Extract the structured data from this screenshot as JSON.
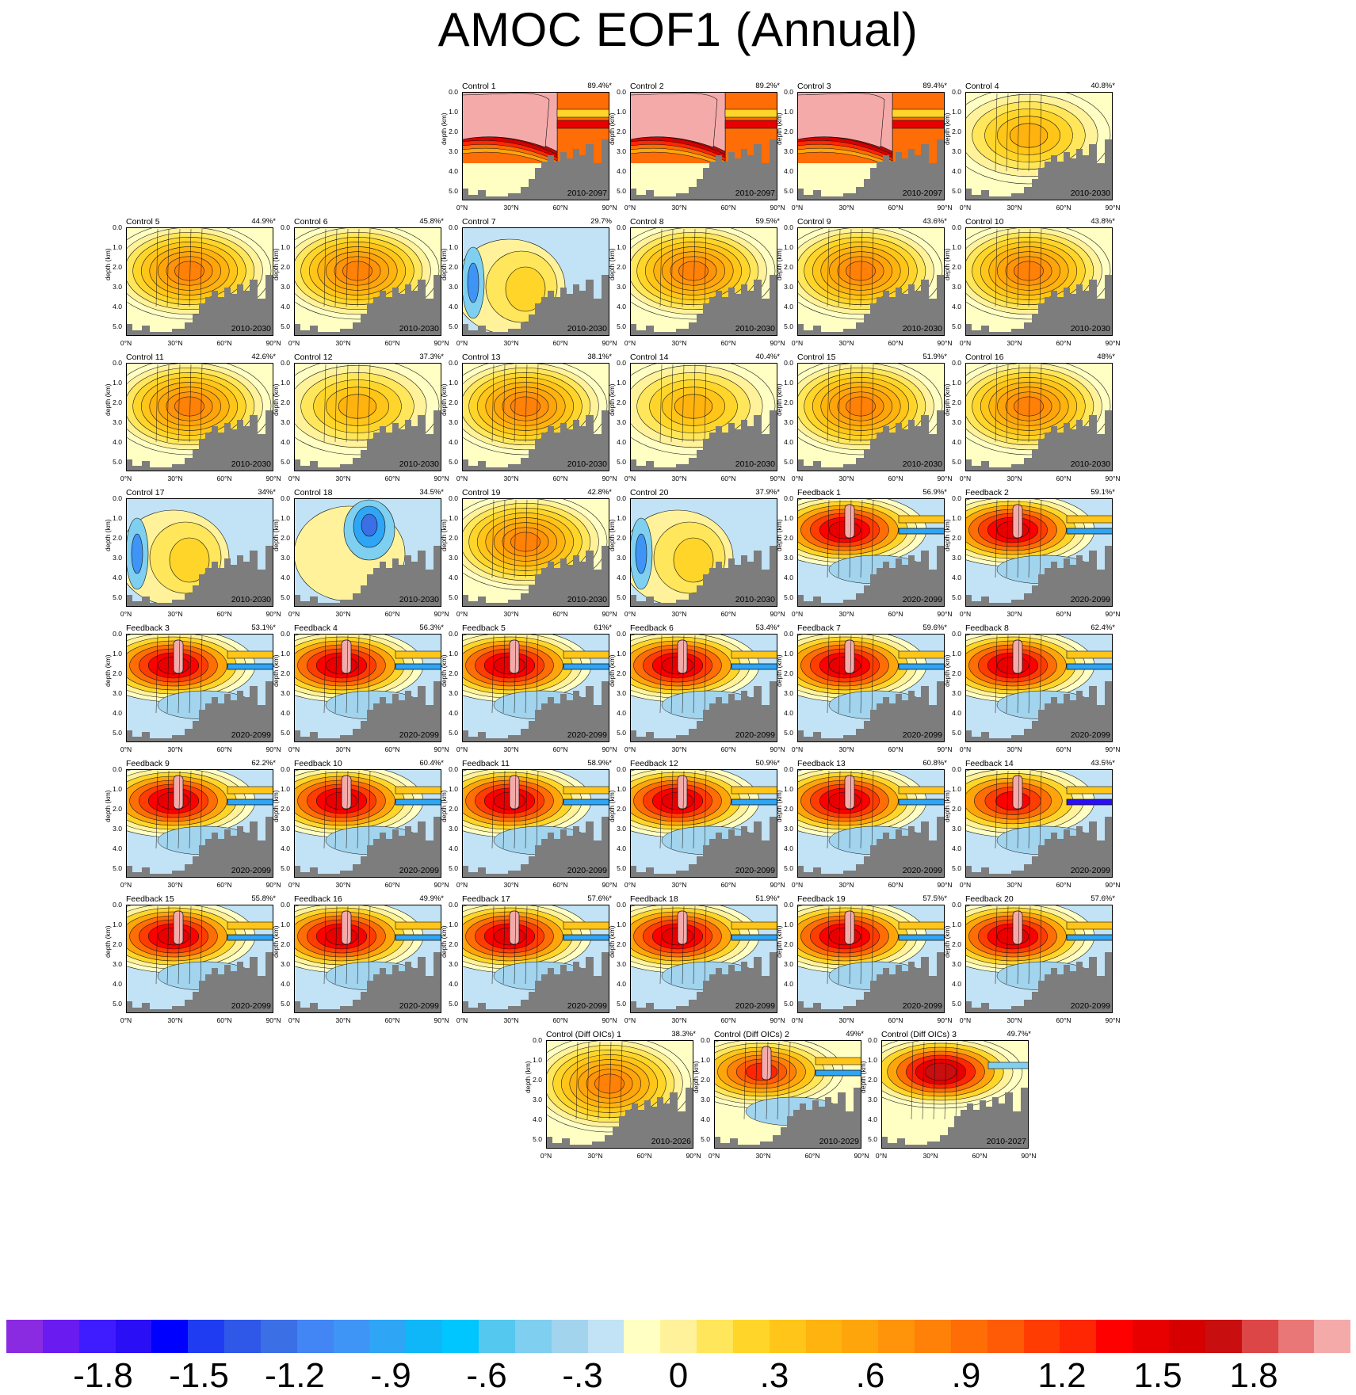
{
  "title": "AMOC EOF1 (Annual)",
  "axis": {
    "ylabel": "depth (km)",
    "yticks": [
      "0.0",
      "1.0",
      "2.0",
      "3.0",
      "4.0",
      "5.0"
    ],
    "xticks": [
      "0°N",
      "30°N",
      "60°N",
      "90°N"
    ]
  },
  "colorbar": {
    "colors": [
      "#8a2be2",
      "#6a1cf0",
      "#3f1cff",
      "#2a0ef5",
      "#0000ff",
      "#1f3cf2",
      "#2f58e8",
      "#3a6fe6",
      "#4285f4",
      "#3f95f5",
      "#2ea5f5",
      "#0fb7f8",
      "#00c6ff",
      "#55c8f0",
      "#7ecff0",
      "#a2d4ee",
      "#c2e2f5",
      "#ffffc4",
      "#fff29a",
      "#ffe65a",
      "#ffd52a",
      "#ffc518",
      "#ffb30f",
      "#ffa50c",
      "#ff930a",
      "#ff8108",
      "#ff6d06",
      "#ff5a05",
      "#ff3d03",
      "#ff2603",
      "#ff0000",
      "#e80000",
      "#d60000",
      "#c80e0e",
      "#dc4646",
      "#ea7777",
      "#f5aaaa"
    ],
    "labels": [
      "-1.8",
      "-1.5",
      "-1.2",
      "-.9",
      "-.6",
      "-.3",
      "0",
      ".3",
      ".6",
      ".9",
      "1.2",
      "1.5",
      "1.8"
    ]
  },
  "chart_data": [
    {
      "type": "contour",
      "panel": "Control 1",
      "variance": "89.4%*",
      "period": "2010-2097",
      "pattern": "red-pink"
    },
    {
      "type": "contour",
      "panel": "Control 2",
      "variance": "89.2%*",
      "period": "2010-2097",
      "pattern": "red-pink"
    },
    {
      "type": "contour",
      "panel": "Control 3",
      "variance": "89.4%*",
      "period": "2010-2097",
      "pattern": "red-pink"
    },
    {
      "type": "contour",
      "panel": "Control 4",
      "variance": "40.8%*",
      "period": "2010-2030",
      "pattern": "yellow"
    },
    {
      "type": "contour",
      "panel": "Control 5",
      "variance": "44.9%*",
      "period": "2010-2030",
      "pattern": "orange"
    },
    {
      "type": "contour",
      "panel": "Control 6",
      "variance": "45.8%*",
      "period": "2010-2030",
      "pattern": "orange"
    },
    {
      "type": "contour",
      "panel": "Control 7",
      "variance": "29.7%",
      "period": "2010-2030",
      "pattern": "blue-yellow"
    },
    {
      "type": "contour",
      "panel": "Control 8",
      "variance": "59.5%*",
      "period": "2010-2030",
      "pattern": "orange"
    },
    {
      "type": "contour",
      "panel": "Control 9",
      "variance": "43.6%*",
      "period": "2010-2030",
      "pattern": "orange"
    },
    {
      "type": "contour",
      "panel": "Control 10",
      "variance": "43.8%*",
      "period": "2010-2030",
      "pattern": "orange"
    },
    {
      "type": "contour",
      "panel": "Control 11",
      "variance": "42.6%*",
      "period": "2010-2030",
      "pattern": "orange"
    },
    {
      "type": "contour",
      "panel": "Control 12",
      "variance": "37.3%*",
      "period": "2010-2030",
      "pattern": "yellow"
    },
    {
      "type": "contour",
      "panel": "Control 13",
      "variance": "38.1%*",
      "period": "2010-2030",
      "pattern": "orange"
    },
    {
      "type": "contour",
      "panel": "Control 14",
      "variance": "40.4%*",
      "period": "2010-2030",
      "pattern": "yellow"
    },
    {
      "type": "contour",
      "panel": "Control 15",
      "variance": "51.9%*",
      "period": "2010-2030",
      "pattern": "orange"
    },
    {
      "type": "contour",
      "panel": "Control 16",
      "variance": "48%*",
      "period": "2010-2030",
      "pattern": "orange"
    },
    {
      "type": "contour",
      "panel": "Control 17",
      "variance": "34%*",
      "period": "2010-2030",
      "pattern": "blue-yellow"
    },
    {
      "type": "contour",
      "panel": "Control 18",
      "variance": "34.5%*",
      "period": "2010-2030",
      "pattern": "blue-core"
    },
    {
      "type": "contour",
      "panel": "Control 19",
      "variance": "42.8%*",
      "period": "2010-2030",
      "pattern": "orange"
    },
    {
      "type": "contour",
      "panel": "Control 20",
      "variance": "37.9%*",
      "period": "2010-2030",
      "pattern": "blue-yellow"
    },
    {
      "type": "contour",
      "panel": "Feedback 1",
      "variance": "56.9%*",
      "period": "2020-2099",
      "pattern": "red"
    },
    {
      "type": "contour",
      "panel": "Feedback 2",
      "variance": "59.1%*",
      "period": "2020-2099",
      "pattern": "red"
    },
    {
      "type": "contour",
      "panel": "Feedback 3",
      "variance": "53.1%*",
      "period": "2020-2099",
      "pattern": "red"
    },
    {
      "type": "contour",
      "panel": "Feedback 4",
      "variance": "56.3%*",
      "period": "2020-2099",
      "pattern": "red"
    },
    {
      "type": "contour",
      "panel": "Feedback 5",
      "variance": "61%*",
      "period": "2020-2099",
      "pattern": "red"
    },
    {
      "type": "contour",
      "panel": "Feedback 6",
      "variance": "53.4%*",
      "period": "2020-2099",
      "pattern": "red"
    },
    {
      "type": "contour",
      "panel": "Feedback 7",
      "variance": "59.6%*",
      "period": "2020-2099",
      "pattern": "red"
    },
    {
      "type": "contour",
      "panel": "Feedback 8",
      "variance": "62.4%*",
      "period": "2020-2099",
      "pattern": "red"
    },
    {
      "type": "contour",
      "panel": "Feedback 9",
      "variance": "62.2%*",
      "period": "2020-2099",
      "pattern": "red"
    },
    {
      "type": "contour",
      "panel": "Feedback 10",
      "variance": "60.4%*",
      "period": "2020-2099",
      "pattern": "red"
    },
    {
      "type": "contour",
      "panel": "Feedback 11",
      "variance": "58.9%*",
      "period": "2020-2099",
      "pattern": "red"
    },
    {
      "type": "contour",
      "panel": "Feedback 12",
      "variance": "50.9%*",
      "period": "2020-2099",
      "pattern": "red"
    },
    {
      "type": "contour",
      "panel": "Feedback 13",
      "variance": "60.8%*",
      "period": "2020-2099",
      "pattern": "red"
    },
    {
      "type": "contour",
      "panel": "Feedback 14",
      "variance": "43.5%*",
      "period": "2020-2099",
      "pattern": "red-blue"
    },
    {
      "type": "contour",
      "panel": "Feedback 15",
      "variance": "55.8%*",
      "period": "2020-2099",
      "pattern": "red"
    },
    {
      "type": "contour",
      "panel": "Feedback 16",
      "variance": "49.9%*",
      "period": "2020-2099",
      "pattern": "red"
    },
    {
      "type": "contour",
      "panel": "Feedback 17",
      "variance": "57.6%*",
      "period": "2020-2099",
      "pattern": "red"
    },
    {
      "type": "contour",
      "panel": "Feedback 18",
      "variance": "51.9%*",
      "period": "2020-2099",
      "pattern": "red"
    },
    {
      "type": "contour",
      "panel": "Feedback 19",
      "variance": "57.5%*",
      "period": "2020-2099",
      "pattern": "red"
    },
    {
      "type": "contour",
      "panel": "Feedback 20",
      "variance": "57.6%*",
      "period": "2020-2099",
      "pattern": "red"
    },
    {
      "type": "contour",
      "panel": "Control (Diff OICs) 1",
      "variance": "38.3%*",
      "period": "2010-2026",
      "pattern": "orange"
    },
    {
      "type": "contour",
      "panel": "Control (Diff OICs) 2",
      "variance": "49%*",
      "period": "2010-2029",
      "pattern": "orange-red"
    },
    {
      "type": "contour",
      "panel": "Control (Diff OICs) 3",
      "variance": "49.7%*",
      "period": "2010-2027",
      "pattern": "red-core"
    }
  ]
}
